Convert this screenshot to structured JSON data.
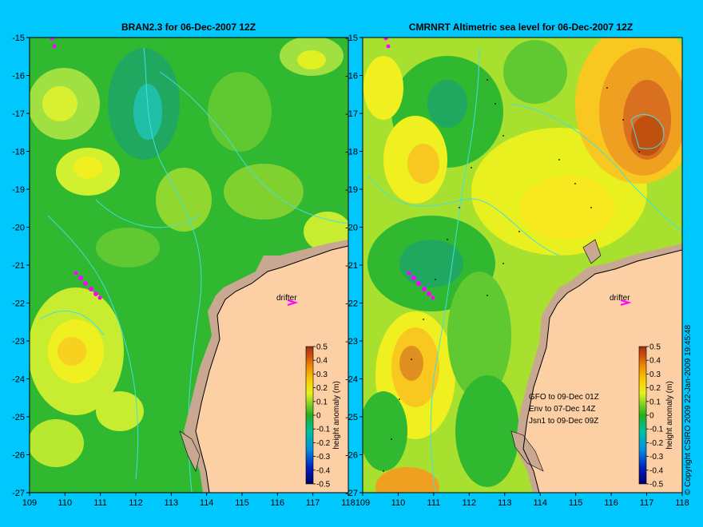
{
  "left_panel": {
    "title": "BRAN2.3 for 06-Dec-2007 12Z",
    "drifter_label": "drifter"
  },
  "right_panel": {
    "title": "CMRNRT Altimetric sea level  for 06-Dec-2007 12Z",
    "drifter_label": "drifter",
    "satellite_lines": [
      "GFO to 09-Dec 01Z",
      "Env to 07-Dec 14Z",
      "Jsn1 to 09-Dec 09Z"
    ]
  },
  "axes": {
    "x_ticks": [
      "109",
      "110",
      "111",
      "112",
      "113",
      "114",
      "115",
      "116",
      "117",
      "118"
    ],
    "y_ticks": [
      "-15",
      "-16",
      "-17",
      "-18",
      "-19",
      "-20",
      "-21",
      "-22",
      "-23",
      "-24",
      "-25",
      "-26",
      "-27"
    ],
    "lon_range": [
      109,
      118
    ],
    "lat_range": [
      -27,
      -15
    ]
  },
  "colorbar": {
    "label": "height anomaly (m)",
    "ticks": [
      "0.5",
      "0.4",
      "0.3",
      "0.2",
      "0.1",
      "0",
      "-0.1",
      "-0.2",
      "-0.3",
      "-0.4",
      "-0.5"
    ],
    "range": [
      -0.5,
      0.5
    ]
  },
  "copyright": "© Copyright CSIRO 2009   22-Jan-2009 19:45:48",
  "colors": {
    "background": "#00c8ff",
    "land": "#fdcfa4",
    "coast_shelf": "#c8a890",
    "contour": "#40e0e0",
    "drifter": "#ff00ff"
  }
}
